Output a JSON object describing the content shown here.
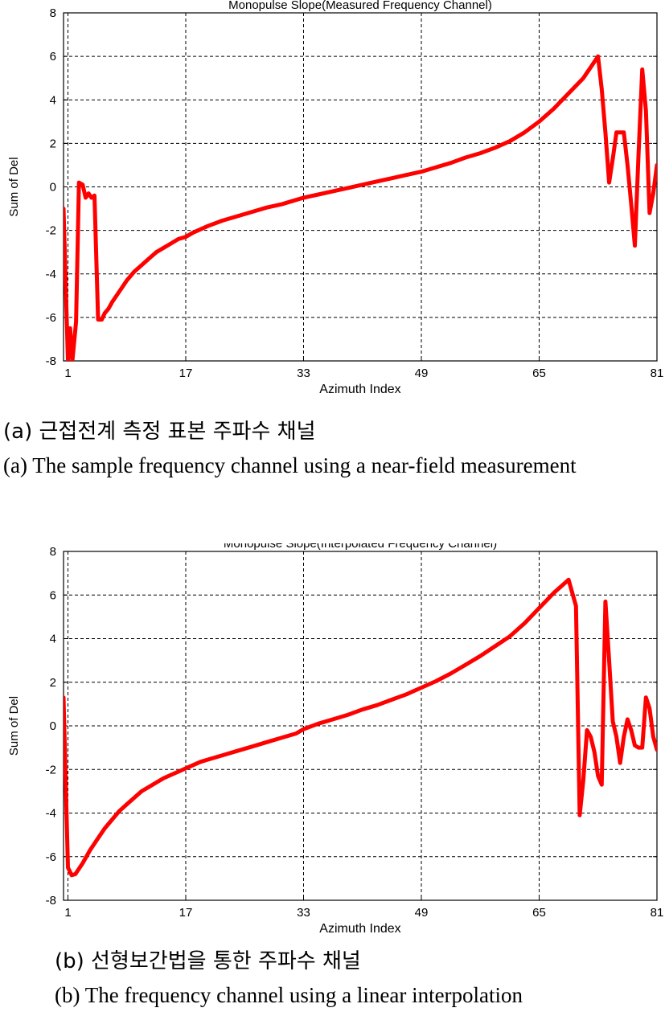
{
  "chart_data": [
    {
      "type": "line",
      "title": "Monopulse Slope(Measured Frequency Channel)",
      "xlabel": "Azimuth Index",
      "ylabel": "Sum of Del",
      "xlim": [
        0.4,
        81
      ],
      "ylim": [
        -8,
        8
      ],
      "xticks": [
        1,
        17,
        33,
        49,
        65,
        81
      ],
      "yticks": [
        -8,
        -6,
        -4,
        -2,
        0,
        2,
        4,
        6,
        8
      ],
      "grid": true,
      "line_color": "#ff0000",
      "series": [
        {
          "x": [
            0.4,
            1,
            1.3,
            1.6,
            2.1,
            2.5,
            3,
            3.4,
            3.8,
            4.2,
            4.6,
            5.1,
            5.6,
            6,
            6.5,
            7,
            8,
            9,
            10,
            11,
            12,
            13,
            14,
            15,
            16,
            17,
            18,
            19,
            20,
            22,
            24,
            26,
            28,
            30,
            32,
            33,
            35,
            37,
            39,
            41,
            43,
            45,
            47,
            49,
            51,
            53,
            55,
            57,
            59,
            61,
            63,
            65,
            67,
            69,
            71,
            72,
            73,
            73.5,
            74,
            74.5,
            75,
            75.5,
            76,
            76.5,
            77,
            77.5,
            78,
            78.5,
            79,
            79.5,
            80,
            80.5,
            81
          ],
          "y": [
            -1,
            -8,
            -6.5,
            -8,
            -6.2,
            0.2,
            0.1,
            -0.5,
            -0.3,
            -0.5,
            -0.4,
            -6.1,
            -6.1,
            -5.8,
            -5.6,
            -5.3,
            -4.8,
            -4.3,
            -3.9,
            -3.6,
            -3.3,
            -3.0,
            -2.8,
            -2.6,
            -2.4,
            -2.3,
            -2.1,
            -1.95,
            -1.8,
            -1.55,
            -1.35,
            -1.15,
            -0.95,
            -0.8,
            -0.6,
            -0.5,
            -0.35,
            -0.2,
            -0.05,
            0.1,
            0.25,
            0.4,
            0.55,
            0.7,
            0.9,
            1.1,
            1.35,
            1.55,
            1.8,
            2.1,
            2.5,
            3.0,
            3.6,
            4.3,
            5.0,
            5.5,
            6.0,
            4.5,
            2.5,
            0.2,
            1.3,
            2.5,
            2.5,
            2.5,
            1.0,
            -0.8,
            -2.7,
            1.5,
            5.4,
            3.5,
            -1.2,
            -0.3,
            1.0
          ]
        }
      ],
      "caption_ko": "(a) 근접전계 측정 표본 주파수 채널",
      "caption_en": "(a) The sample frequency channel using a near-field measurement"
    },
    {
      "type": "line",
      "title": "Monopulse Slope(Interpolated Frequency Channel)",
      "xlabel": "Azimuth Index",
      "ylabel": "Sum of Del",
      "xlim": [
        0.4,
        81
      ],
      "ylim": [
        -8,
        8
      ],
      "xticks": [
        1,
        17,
        33,
        49,
        65,
        81
      ],
      "yticks": [
        -8,
        -6,
        -4,
        -2,
        0,
        2,
        4,
        6,
        8
      ],
      "grid": true,
      "line_color": "#ff0000",
      "series": [
        {
          "x": [
            0.4,
            1,
            1.5,
            2,
            3,
            4,
            5,
            6,
            7,
            8,
            9,
            10,
            11,
            12,
            13,
            14,
            15,
            16,
            17,
            18,
            19,
            20,
            22,
            24,
            26,
            28,
            30,
            32,
            33,
            35,
            37,
            39,
            41,
            43,
            45,
            47,
            49,
            51,
            53,
            55,
            57,
            59,
            61,
            63,
            65,
            67,
            69,
            70,
            70.5,
            71,
            71.5,
            72,
            72.5,
            73,
            73.5,
            74,
            74.5,
            75,
            75.5,
            76,
            76.5,
            77,
            77.5,
            78,
            78.5,
            79,
            79.5,
            80,
            80.5,
            81
          ],
          "y": [
            1.3,
            -6.5,
            -6.85,
            -6.8,
            -6.3,
            -5.7,
            -5.2,
            -4.7,
            -4.3,
            -3.9,
            -3.6,
            -3.3,
            -3.0,
            -2.8,
            -2.6,
            -2.4,
            -2.25,
            -2.1,
            -1.95,
            -1.8,
            -1.65,
            -1.55,
            -1.35,
            -1.15,
            -0.95,
            -0.75,
            -0.55,
            -0.35,
            -0.15,
            0.1,
            0.3,
            0.5,
            0.75,
            0.95,
            1.2,
            1.45,
            1.75,
            2.05,
            2.4,
            2.8,
            3.2,
            3.65,
            4.1,
            4.7,
            5.4,
            6.1,
            6.7,
            5.5,
            -4.1,
            -2.5,
            -0.2,
            -0.5,
            -1.2,
            -2.3,
            -2.7,
            5.7,
            3.0,
            0.2,
            -0.5,
            -1.7,
            -0.5,
            0.3,
            -0.2,
            -0.9,
            -1.0,
            -1.0,
            1.3,
            0.8,
            -0.5,
            -1.1
          ]
        }
      ],
      "caption_ko": "(b) 선형보간법을 통한 주파수 채널",
      "caption_en": "(b) The frequency channel using a linear interpolation"
    }
  ]
}
